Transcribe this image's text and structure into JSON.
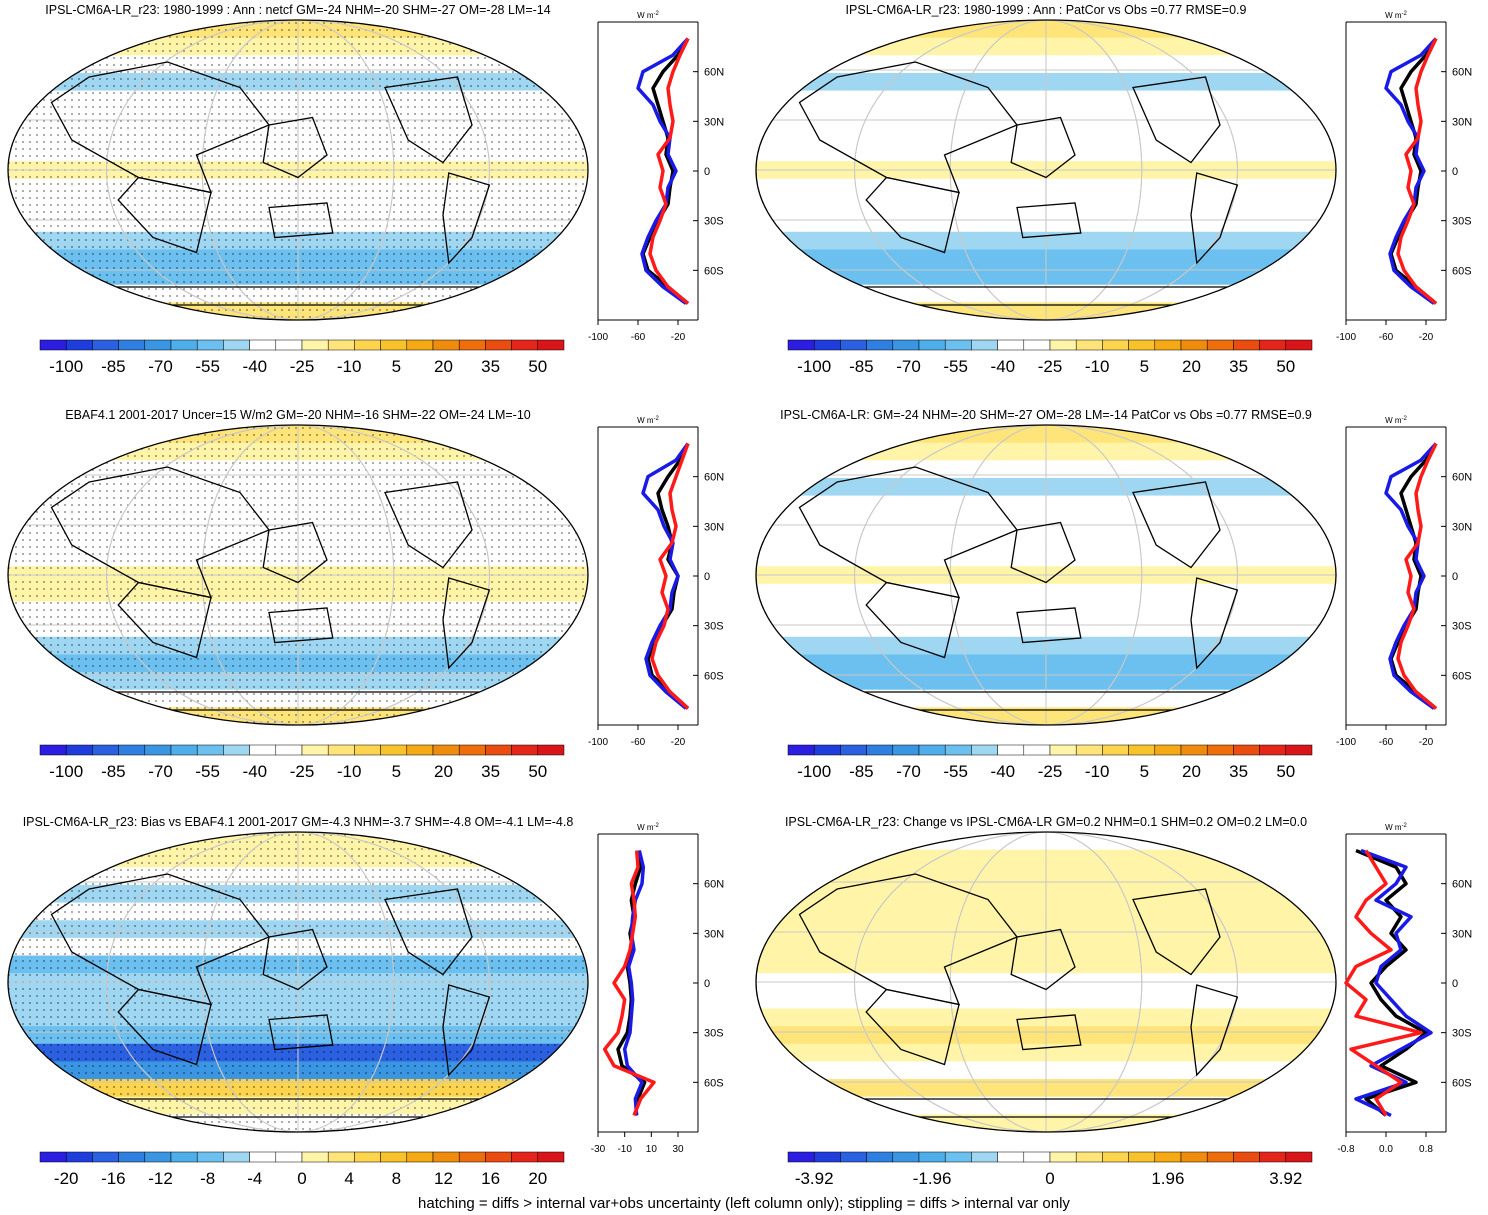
{
  "colors": {
    "cbar_colors": [
      "#2c1ee0",
      "#1f3ddc",
      "#2b60e0",
      "#2f7fe0",
      "#3a95e3",
      "#4daeea",
      "#6cc0ef",
      "#9fd7f3",
      "#ffffff",
      "#ffffff",
      "#fff4a8",
      "#ffe47a",
      "#fdd44e",
      "#f8c22a",
      "#f4a915",
      "#f08c0d",
      "#ee6e0c",
      "#eb4c0f",
      "#e4261a",
      "#d8161a"
    ],
    "model_line": "#000000",
    "obs_line": "#1a1ae6",
    "bias_line": "#ff1a1a",
    "continent": "#000000",
    "graticule": "#c8c8c8"
  },
  "panels": [
    {
      "id": "p1",
      "title": "IPSL-CM6A-LR_r23: 1980-1999 : Ann : netcf GM=-24 NHM=-20 SHM=-27 OM=-28 LM=-14",
      "cbar_labels": [
        "-100",
        "-85",
        "-70",
        "-55",
        "-40",
        "-25",
        "-10",
        "5",
        "20",
        "35",
        "50"
      ],
      "unit_label": "W m",
      "unit_exp": "-2",
      "lat_labels": [
        "60N",
        "30N",
        "0",
        "30S",
        "60S"
      ],
      "xticks": [
        "-100",
        "-60",
        "-20"
      ],
      "hatched": true,
      "chart_data": {
        "type": "heatmap",
        "title": "IPSL-CM6A-LR_r23: 1980-1999 : Ann : netcf GM=-24 NHM=-20 SHM=-27 OM=-28 LM=-14",
        "colorbar_ticks": [
          -100,
          -85,
          -70,
          -55,
          -40,
          -25,
          -10,
          5,
          20,
          35,
          50
        ],
        "zonal_mean": {
          "lat": [
            80,
            70,
            60,
            50,
            40,
            30,
            20,
            10,
            0,
            -10,
            -20,
            -30,
            -40,
            -50,
            -60,
            -70,
            -80
          ],
          "series": [
            {
              "name": "model",
              "color": "#000000",
              "values": [
                -10,
                -20,
                -35,
                -45,
                -40,
                -35,
                -30,
                -32,
                -25,
                -28,
                -30,
                -40,
                -48,
                -55,
                -50,
                -30,
                -10
              ]
            },
            {
              "name": "obs",
              "color": "#1a1ae6",
              "values": [
                -10,
                -25,
                -55,
                -60,
                -45,
                -38,
                -28,
                -30,
                -22,
                -30,
                -32,
                -42,
                -50,
                -56,
                -52,
                -35,
                -12
              ]
            },
            {
              "name": "bias",
              "color": "#ff1a1a",
              "values": [
                -10,
                -18,
                -25,
                -30,
                -28,
                -25,
                -28,
                -40,
                -35,
                -38,
                -32,
                -38,
                -45,
                -48,
                -42,
                -30,
                -10
              ]
            }
          ]
        }
      }
    },
    {
      "id": "p2",
      "title": "IPSL-CM6A-LR_r23: 1980-1999 : Ann : PatCor vs Obs =0.77 RMSE=0.9",
      "cbar_labels": [
        "-100",
        "-85",
        "-70",
        "-55",
        "-40",
        "-25",
        "-10",
        "5",
        "20",
        "35",
        "50"
      ],
      "unit_label": "W m",
      "unit_exp": "-2",
      "lat_labels": [
        "60N",
        "30N",
        "0",
        "30S",
        "60S"
      ],
      "xticks": [
        "-100",
        "-60",
        "-20"
      ],
      "hatched": false,
      "chart_data": {
        "type": "heatmap",
        "title": "IPSL-CM6A-LR_r23: 1980-1999 : Ann : PatCor vs Obs =0.77 RMSE=0.9",
        "colorbar_ticks": [
          -100,
          -85,
          -70,
          -55,
          -40,
          -25,
          -10,
          5,
          20,
          35,
          50
        ],
        "zonal_mean": {
          "lat": [
            80,
            70,
            60,
            50,
            40,
            30,
            20,
            10,
            0,
            -10,
            -20,
            -30,
            -40,
            -50,
            -60,
            -70,
            -80
          ],
          "series": [
            {
              "name": "model",
              "color": "#000000",
              "values": [
                -10,
                -20,
                -35,
                -45,
                -40,
                -35,
                -30,
                -32,
                -25,
                -28,
                -30,
                -40,
                -48,
                -55,
                -50,
                -30,
                -10
              ]
            },
            {
              "name": "obs",
              "color": "#1a1ae6",
              "values": [
                -10,
                -25,
                -55,
                -60,
                -45,
                -38,
                -28,
                -30,
                -22,
                -30,
                -32,
                -42,
                -50,
                -56,
                -52,
                -35,
                -12
              ]
            },
            {
              "name": "bias",
              "color": "#ff1a1a",
              "values": [
                -10,
                -18,
                -25,
                -30,
                -28,
                -25,
                -28,
                -40,
                -35,
                -38,
                -32,
                -38,
                -45,
                -48,
                -42,
                -30,
                -10
              ]
            }
          ]
        }
      }
    },
    {
      "id": "p3",
      "title": "EBAF4.1 2001-2017 Uncer=15 W/m2 GM=-20 NHM=-16 SHM=-22 OM=-24 LM=-10",
      "cbar_labels": [
        "-100",
        "-85",
        "-70",
        "-55",
        "-40",
        "-25",
        "-10",
        "5",
        "20",
        "35",
        "50"
      ],
      "unit_label": "W m",
      "unit_exp": "-2",
      "lat_labels": [
        "60N",
        "30N",
        "0",
        "30S",
        "60S"
      ],
      "xticks": [
        "-100",
        "-60",
        "-20"
      ],
      "hatched": true,
      "chart_data": {
        "type": "heatmap",
        "title": "EBAF4.1 2001-2017 Uncer=15 W/m2 GM=-20 NHM=-16 SHM=-22 OM=-24 LM=-10",
        "colorbar_ticks": [
          -100,
          -85,
          -70,
          -55,
          -40,
          -25,
          -10,
          5,
          20,
          35,
          50
        ],
        "zonal_mean": {
          "lat": [
            80,
            70,
            60,
            50,
            40,
            30,
            20,
            10,
            0,
            -10,
            -20,
            -30,
            -40,
            -50,
            -60,
            -70,
            -80
          ],
          "series": [
            {
              "name": "model",
              "color": "#000000",
              "values": [
                -10,
                -18,
                -30,
                -40,
                -36,
                -30,
                -26,
                -30,
                -20,
                -24,
                -26,
                -36,
                -44,
                -50,
                -46,
                -28,
                -10
              ]
            },
            {
              "name": "obs",
              "color": "#1a1ae6",
              "values": [
                -10,
                -22,
                -50,
                -55,
                -40,
                -34,
                -25,
                -28,
                -20,
                -26,
                -28,
                -38,
                -46,
                -52,
                -48,
                -32,
                -12
              ]
            },
            {
              "name": "bias",
              "color": "#ff1a1a",
              "values": [
                -10,
                -16,
                -22,
                -28,
                -26,
                -22,
                -26,
                -38,
                -32,
                -36,
                -30,
                -34,
                -42,
                -46,
                -40,
                -28,
                -10
              ]
            }
          ]
        }
      }
    },
    {
      "id": "p4",
      "title": "IPSL-CM6A-LR: GM=-24 NHM=-20 SHM=-27 OM=-28 LM=-14 PatCor vs Obs =0.77 RMSE=0.9",
      "cbar_labels": [
        "-100",
        "-85",
        "-70",
        "-55",
        "-40",
        "-25",
        "-10",
        "5",
        "20",
        "35",
        "50"
      ],
      "unit_label": "W m",
      "unit_exp": "-2",
      "lat_labels": [
        "60N",
        "30N",
        "0",
        "30S",
        "60S"
      ],
      "xticks": [
        "-100",
        "-60",
        "-20"
      ],
      "hatched": false,
      "chart_data": {
        "type": "heatmap",
        "title": "IPSL-CM6A-LR: GM=-24 NHM=-20 SHM=-27 OM=-28 LM=-14 PatCor vs Obs =0.77 RMSE=0.9",
        "colorbar_ticks": [
          -100,
          -85,
          -70,
          -55,
          -40,
          -25,
          -10,
          5,
          20,
          35,
          50
        ],
        "zonal_mean": {
          "lat": [
            80,
            70,
            60,
            50,
            40,
            30,
            20,
            10,
            0,
            -10,
            -20,
            -30,
            -40,
            -50,
            -60,
            -70,
            -80
          ],
          "series": [
            {
              "name": "model",
              "color": "#000000",
              "values": [
                -10,
                -20,
                -35,
                -45,
                -40,
                -35,
                -30,
                -32,
                -25,
                -28,
                -30,
                -40,
                -48,
                -55,
                -50,
                -30,
                -10
              ]
            },
            {
              "name": "obs",
              "color": "#1a1ae6",
              "values": [
                -10,
                -25,
                -55,
                -60,
                -45,
                -38,
                -28,
                -30,
                -22,
                -30,
                -32,
                -42,
                -50,
                -56,
                -52,
                -35,
                -12
              ]
            },
            {
              "name": "bias",
              "color": "#ff1a1a",
              "values": [
                -10,
                -18,
                -25,
                -30,
                -28,
                -25,
                -28,
                -40,
                -35,
                -38,
                -32,
                -38,
                -45,
                -48,
                -42,
                -30,
                -10
              ]
            }
          ]
        }
      }
    },
    {
      "id": "p5",
      "title": "IPSL-CM6A-LR_r23: Bias vs EBAF4.1 2001-2017 GM=-4.3 NHM=-3.7 SHM=-4.8 OM=-4.1 LM=-4.8",
      "cbar_labels": [
        "-20",
        "-16",
        "-12",
        "-8",
        "-4",
        "0",
        "4",
        "8",
        "12",
        "16",
        "20"
      ],
      "unit_label": "W m",
      "unit_exp": "-2",
      "lat_labels": [
        "60N",
        "30N",
        "0",
        "30S",
        "60S"
      ],
      "xticks": [
        "-30",
        "-10",
        "10",
        "30"
      ],
      "hatched": true,
      "chart_data": {
        "type": "heatmap",
        "title": "IPSL-CM6A-LR_r23: Bias vs EBAF4.1 2001-2017 GM=-4.3 NHM=-3.7 SHM=-4.8 OM=-4.1 LM=-4.8",
        "colorbar_ticks": [
          -20,
          -16,
          -12,
          -8,
          -4,
          0,
          4,
          8,
          12,
          16,
          20
        ],
        "zonal_mean": {
          "lat": [
            80,
            70,
            60,
            50,
            40,
            30,
            20,
            10,
            0,
            -10,
            -20,
            -30,
            -40,
            -50,
            -60,
            -70,
            -80
          ],
          "series": [
            {
              "name": "model",
              "color": "#000000",
              "values": [
                0,
                2,
                -2,
                -5,
                -3,
                -6,
                -4,
                -8,
                -6,
                -5,
                -6,
                -8,
                -15,
                -12,
                5,
                0,
                -2
              ]
            },
            {
              "name": "obs",
              "color": "#1a1ae6",
              "values": [
                1,
                4,
                3,
                -2,
                -4,
                -5,
                -3,
                -7,
                -5,
                -4,
                -5,
                -6,
                -10,
                -8,
                3,
                -2,
                -1
              ]
            },
            {
              "name": "bias",
              "color": "#ff1a1a",
              "values": [
                -1,
                0,
                -5,
                -3,
                -2,
                -4,
                -6,
                -10,
                -18,
                -10,
                -12,
                -15,
                -25,
                -18,
                12,
                2,
                -3
              ]
            }
          ]
        }
      }
    },
    {
      "id": "p6",
      "title": "IPSL-CM6A-LR_r23: Change vs IPSL-CM6A-LR GM=0.2 NHM=0.1 SHM=0.2 OM=0.2 LM=0.0",
      "cbar_labels": [
        "-3.92",
        "-1.96",
        "0",
        "1.96",
        "3.92"
      ],
      "unit_label": "W m",
      "unit_exp": "-2",
      "lat_labels": [
        "60N",
        "30N",
        "0",
        "30S",
        "60S"
      ],
      "xticks": [
        "-0.8",
        "0.0",
        "0.8"
      ],
      "hatched": false,
      "chart_data": {
        "type": "heatmap",
        "title": "IPSL-CM6A-LR_r23: Change vs IPSL-CM6A-LR GM=0.2 NHM=0.1 SHM=0.2 OM=0.2 LM=0.0",
        "colorbar_ticks": [
          -3.92,
          -1.96,
          0,
          1.96,
          3.92
        ],
        "zonal_mean": {
          "lat": [
            80,
            70,
            60,
            50,
            40,
            30,
            20,
            10,
            0,
            -10,
            -20,
            -30,
            -40,
            -50,
            -60,
            -70,
            -80
          ],
          "series": [
            {
              "name": "model",
              "color": "#000000",
              "values": [
                -0.6,
                0.2,
                0.4,
                0.0,
                0.3,
                0.1,
                0.4,
                0.0,
                -0.3,
                -0.1,
                0.2,
                0.8,
                0.4,
                -0.1,
                0.6,
                -0.4,
                0.0
              ]
            },
            {
              "name": "obs",
              "color": "#1a1ae6",
              "values": [
                -0.5,
                0.4,
                0.2,
                -0.2,
                0.5,
                0.2,
                0.3,
                -0.1,
                -0.2,
                0.1,
                0.4,
                0.9,
                0.3,
                -0.3,
                0.4,
                -0.6,
                0.1
              ]
            },
            {
              "name": "bias",
              "color": "#ff1a1a",
              "values": [
                -0.4,
                -0.2,
                0.0,
                -0.4,
                -0.6,
                -0.3,
                0.1,
                -0.6,
                -0.8,
                -0.4,
                -0.6,
                0.7,
                -0.7,
                -0.2,
                0.3,
                -0.2,
                0.0
              ]
            }
          ]
        }
      }
    }
  ],
  "footnote": "hatching = diffs > internal var+obs uncertainty (left column only); stippling = diffs > internal var only"
}
